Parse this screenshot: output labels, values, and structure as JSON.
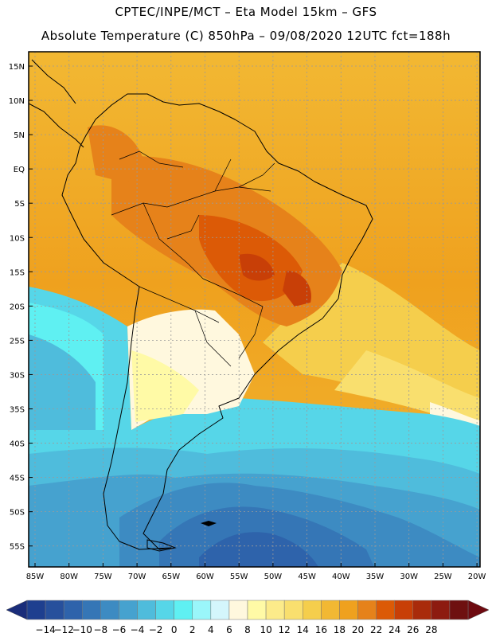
{
  "header": {
    "line1": "CPTEC/INPE/MCT –  Eta Model 15km – GFS",
    "line2": "Absolute Temperature (C) 850hPa – 09/08/2020 12UTC fct=188h"
  },
  "lat_labels": [
    "15N",
    "10N",
    "5N",
    "EQ",
    "5S",
    "10S",
    "15S",
    "20S",
    "25S",
    "30S",
    "35S",
    "40S",
    "45S",
    "50S",
    "55S"
  ],
  "lon_labels": [
    "85W",
    "80W",
    "75W",
    "70W",
    "65W",
    "60W",
    "55W",
    "50W",
    "45W",
    "40W",
    "35W",
    "30W",
    "25W",
    "20W"
  ],
  "colorbar": {
    "labels": [
      "-14",
      "-12",
      "-10",
      "-8",
      "-6",
      "-4",
      "-2",
      "0",
      "2",
      "4",
      "6",
      "8",
      "10",
      "12",
      "14",
      "16",
      "18",
      "20",
      "22",
      "24",
      "26",
      "28"
    ],
    "colors": [
      "#1e3f8f",
      "#27509c",
      "#2e63ab",
      "#3576b6",
      "#3d8bc2",
      "#46a2cf",
      "#4fbcdc",
      "#56d6e8",
      "#5ff0f2",
      "#9af6fa",
      "#d4f6fc",
      "#fff8de",
      "#fffaa6",
      "#fceb8a",
      "#f9df6e",
      "#f5ce4c",
      "#f2b833",
      "#efa11e",
      "#e6821a",
      "#dc5a06",
      "#c83f07",
      "#a92b0b",
      "#8d1b10",
      "#6e1010"
    ],
    "under_color": "#1a2d7a",
    "over_color": "#6e0a10"
  }
}
